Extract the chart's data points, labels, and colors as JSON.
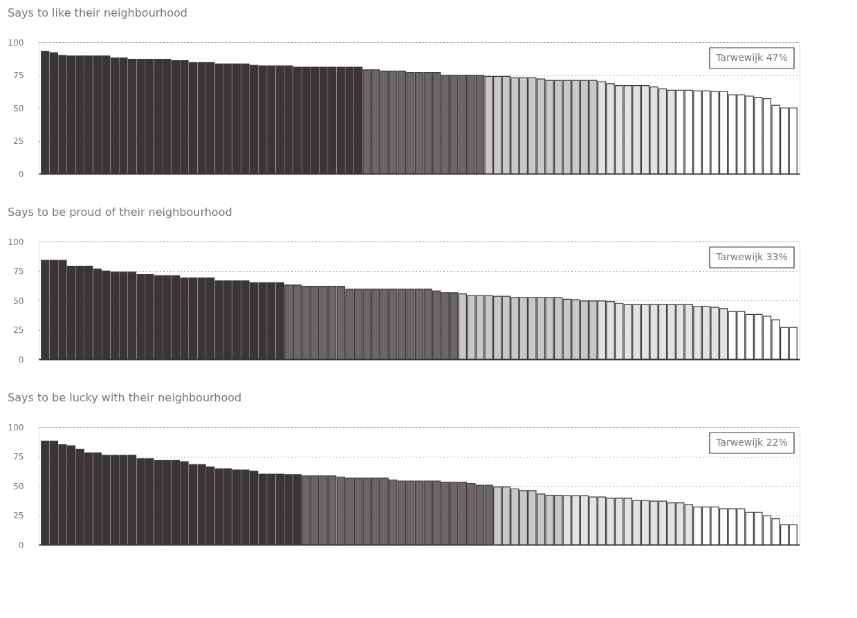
{
  "chart_data": [
    {
      "type": "bar",
      "title": "Says to like their neighbourhood",
      "ylim": [
        0,
        100
      ],
      "yticks": [
        0,
        25,
        50,
        75,
        100
      ],
      "grid": "y",
      "tick_labels": "y",
      "categories": [
        null,
        null,
        null,
        null,
        null,
        null,
        null,
        null,
        null,
        null,
        null,
        null,
        null,
        null,
        null,
        null,
        null,
        null,
        null,
        null,
        null,
        null,
        null,
        null,
        null,
        null,
        null,
        null,
        null,
        null,
        null,
        null,
        null,
        null,
        null,
        null,
        null,
        null,
        null,
        null,
        null,
        null,
        null,
        null,
        null,
        null,
        null,
        null,
        null,
        null,
        null,
        null,
        null,
        null,
        null,
        null,
        null,
        null,
        null,
        null,
        null,
        null,
        null,
        null,
        null,
        null,
        null,
        null,
        null,
        null,
        null,
        null,
        null,
        null,
        null,
        null,
        null,
        null,
        null,
        null,
        null,
        null,
        null,
        null,
        null,
        null,
        null
      ],
      "values": [
        93,
        92,
        90,
        89.5,
        89.5,
        89.5,
        89.5,
        89.5,
        88,
        88,
        87,
        87,
        87,
        87,
        87,
        86,
        86,
        84.5,
        84.5,
        84.5,
        83.5,
        83.5,
        83.5,
        83.5,
        82.5,
        82,
        82,
        82,
        82,
        81,
        81,
        81,
        81,
        81,
        81,
        81,
        81,
        79,
        79,
        78,
        78,
        78,
        77,
        77,
        77,
        77,
        75,
        75,
        75,
        75,
        75,
        74,
        74,
        74,
        73,
        73,
        73,
        72,
        71,
        71,
        71,
        71,
        71,
        71,
        70,
        68.5,
        67,
        67,
        67,
        67,
        66,
        64.5,
        63.5,
        63.5,
        63.5,
        63,
        63,
        62.5,
        62.5,
        60,
        60,
        59,
        58,
        57,
        52,
        50,
        50
      ],
      "colors": [
        "#3a3536",
        "#3a3536",
        "#3a3536",
        "#3a3536",
        "#3a3536",
        "#3a3536",
        "#3a3536",
        "#3a3536",
        "#3a3536",
        "#3a3536",
        "#3a3536",
        "#3a3536",
        "#3a3536",
        "#3a3536",
        "#3a3536",
        "#3a3536",
        "#3a3536",
        "#3a3536",
        "#3a3536",
        "#3a3536",
        "#3a3536",
        "#3a3536",
        "#3a3536",
        "#3a3536",
        "#3a3536",
        "#3a3536",
        "#3a3536",
        "#3a3536",
        "#3a3536",
        "#3a3536",
        "#3a3536",
        "#3a3536",
        "#3a3536",
        "#3a3536",
        "#3a3536",
        "#3a3536",
        "#3a3536",
        "#6b6768",
        "#6b6768",
        "#6b6768",
        "#6b6768",
        "#6b6768",
        "#6b6768",
        "#6b6768",
        "#6b6768",
        "#6b6768",
        "#6b6768",
        "#6b6768",
        "#6b6768",
        "#6b6768",
        "#6b6768",
        "#c9c7c7",
        "#c9c7c7",
        "#c9c7c7",
        "#c9c7c7",
        "#c9c7c7",
        "#c9c7c7",
        "#c9c7c7",
        "#c9c7c7",
        "#c9c7c7",
        "#c9c7c7",
        "#c9c7c7",
        "#c9c7c7",
        "#c9c7c7",
        "#e4e3e3",
        "#e4e3e3",
        "#e4e3e3",
        "#e4e3e3",
        "#e4e3e3",
        "#e4e3e3",
        "#e4e3e3",
        "#e4e3e3",
        "#e4e3e3",
        "#ffffff",
        "#ffffff",
        "#ffffff",
        "#ffffff",
        "#ffffff",
        "#ffffff",
        "#ffffff",
        "#ffffff",
        "#ffffff",
        "#ffffff",
        "#ffffff",
        "#ffffff",
        "#ffffff",
        "#ffffff"
      ],
      "annotations": [
        "Tarwewijk 47%"
      ]
    },
    {
      "type": "bar",
      "title": "Says to be proud of their neighbourhood",
      "ylim": [
        0,
        100
      ],
      "yticks": [
        0,
        25,
        50,
        75,
        100
      ],
      "grid": "y",
      "tick_labels": "y",
      "categories": [
        null,
        null,
        null,
        null,
        null,
        null,
        null,
        null,
        null,
        null,
        null,
        null,
        null,
        null,
        null,
        null,
        null,
        null,
        null,
        null,
        null,
        null,
        null,
        null,
        null,
        null,
        null,
        null,
        null,
        null,
        null,
        null,
        null,
        null,
        null,
        null,
        null,
        null,
        null,
        null,
        null,
        null,
        null,
        null,
        null,
        null,
        null,
        null,
        null,
        null,
        null,
        null,
        null,
        null,
        null,
        null,
        null,
        null,
        null,
        null,
        null,
        null,
        null,
        null,
        null,
        null,
        null,
        null,
        null,
        null,
        null,
        null,
        null,
        null,
        null,
        null,
        null,
        null,
        null,
        null,
        null,
        null,
        null,
        null,
        null,
        null,
        null
      ],
      "values": [
        84,
        84,
        84,
        79,
        79,
        79,
        76.5,
        75,
        74,
        74,
        74,
        72,
        72,
        71,
        71,
        71,
        69,
        69,
        69,
        69,
        66.5,
        66.5,
        66.5,
        66.5,
        65,
        65,
        65,
        65,
        63,
        63,
        62,
        62,
        62,
        62,
        62,
        59.5,
        59.5,
        59.5,
        59.5,
        59.5,
        59.5,
        59.5,
        59.5,
        59.5,
        59.5,
        58,
        56.5,
        56.5,
        55.5,
        54,
        54,
        54,
        53.5,
        53.5,
        52.5,
        52.5,
        52.5,
        52.5,
        52.5,
        52.5,
        51,
        50.5,
        49.5,
        49.5,
        49.5,
        49,
        47.5,
        46.5,
        46.5,
        46.5,
        46.5,
        46.5,
        46.5,
        46.5,
        46.5,
        45,
        45,
        44,
        43,
        40.5,
        40.5,
        38,
        38,
        36.5,
        33.5,
        27,
        27
      ],
      "colors": [
        "#3a3536",
        "#3a3536",
        "#3a3536",
        "#3a3536",
        "#3a3536",
        "#3a3536",
        "#3a3536",
        "#3a3536",
        "#3a3536",
        "#3a3536",
        "#3a3536",
        "#3a3536",
        "#3a3536",
        "#3a3536",
        "#3a3536",
        "#3a3536",
        "#3a3536",
        "#3a3536",
        "#3a3536",
        "#3a3536",
        "#3a3536",
        "#3a3536",
        "#3a3536",
        "#3a3536",
        "#3a3536",
        "#3a3536",
        "#3a3536",
        "#3a3536",
        "#6b6768",
        "#6b6768",
        "#6b6768",
        "#6b6768",
        "#6b6768",
        "#6b6768",
        "#6b6768",
        "#6b6768",
        "#6b6768",
        "#6b6768",
        "#6b6768",
        "#6b6768",
        "#6b6768",
        "#6b6768",
        "#6b6768",
        "#6b6768",
        "#6b6768",
        "#6b6768",
        "#6b6768",
        "#6b6768",
        "#c9c7c7",
        "#c9c7c7",
        "#c9c7c7",
        "#c9c7c7",
        "#c9c7c7",
        "#c9c7c7",
        "#c9c7c7",
        "#c9c7c7",
        "#c9c7c7",
        "#c9c7c7",
        "#c9c7c7",
        "#c9c7c7",
        "#c9c7c7",
        "#c9c7c7",
        "#c9c7c7",
        "#c9c7c7",
        "#e4e3e3",
        "#e4e3e3",
        "#e4e3e3",
        "#e4e3e3",
        "#e4e3e3",
        "#e4e3e3",
        "#e4e3e3",
        "#e4e3e3",
        "#e4e3e3",
        "#e4e3e3",
        "#e4e3e3",
        "#e4e3e3",
        "#e4e3e3",
        "#e4e3e3",
        "#e4e3e3",
        "#ffffff",
        "#ffffff",
        "#ffffff",
        "#ffffff",
        "#ffffff",
        "#ffffff",
        "#ffffff",
        "#ffffff"
      ],
      "annotations": [
        "Tarwewijk 33%"
      ]
    },
    {
      "type": "bar",
      "title": "Says to be lucky with their neighbourhood",
      "ylim": [
        0,
        100
      ],
      "yticks": [
        0,
        25,
        50,
        75,
        100
      ],
      "grid": "y",
      "tick_labels": "y",
      "categories": [
        null,
        null,
        null,
        null,
        null,
        null,
        null,
        null,
        null,
        null,
        null,
        null,
        null,
        null,
        null,
        null,
        null,
        null,
        null,
        null,
        null,
        null,
        null,
        null,
        null,
        null,
        null,
        null,
        null,
        null,
        null,
        null,
        null,
        null,
        null,
        null,
        null,
        null,
        null,
        null,
        null,
        null,
        null,
        null,
        null,
        null,
        null,
        null,
        null,
        null,
        null,
        null,
        null,
        null,
        null,
        null,
        null,
        null,
        null,
        null,
        null,
        null,
        null,
        null,
        null,
        null,
        null,
        null,
        null,
        null,
        null,
        null,
        null,
        null,
        null,
        null,
        null,
        null,
        null,
        null,
        null,
        null,
        null,
        null,
        null,
        null,
        null
      ],
      "values": [
        88,
        88,
        85,
        84,
        81,
        78,
        78,
        76,
        76,
        76,
        76,
        73,
        73,
        71.5,
        71.5,
        71.5,
        70.5,
        68,
        68,
        66,
        64.5,
        64.5,
        63.5,
        63.5,
        62.5,
        60,
        60,
        60,
        59.5,
        59.5,
        58.5,
        58.5,
        58.5,
        58.5,
        57.5,
        56.5,
        56.5,
        56.5,
        56.5,
        56.5,
        55,
        54,
        54,
        54,
        54,
        54,
        53,
        53,
        53,
        52,
        50.5,
        50.5,
        49,
        49,
        47.5,
        46,
        46,
        43,
        42,
        42,
        41.5,
        41.5,
        41.5,
        40.5,
        40.5,
        39.5,
        39.5,
        39.5,
        37.5,
        37.5,
        37,
        37,
        35.5,
        35.5,
        34,
        32,
        32,
        32,
        30.5,
        30.5,
        30.5,
        27.5,
        27.5,
        24.5,
        22,
        17,
        17
      ],
      "colors": [
        "#3a3536",
        "#3a3536",
        "#3a3536",
        "#3a3536",
        "#3a3536",
        "#3a3536",
        "#3a3536",
        "#3a3536",
        "#3a3536",
        "#3a3536",
        "#3a3536",
        "#3a3536",
        "#3a3536",
        "#3a3536",
        "#3a3536",
        "#3a3536",
        "#3a3536",
        "#3a3536",
        "#3a3536",
        "#3a3536",
        "#3a3536",
        "#3a3536",
        "#3a3536",
        "#3a3536",
        "#3a3536",
        "#3a3536",
        "#3a3536",
        "#3a3536",
        "#3a3536",
        "#3a3536",
        "#6b6768",
        "#6b6768",
        "#6b6768",
        "#6b6768",
        "#6b6768",
        "#6b6768",
        "#6b6768",
        "#6b6768",
        "#6b6768",
        "#6b6768",
        "#6b6768",
        "#6b6768",
        "#6b6768",
        "#6b6768",
        "#6b6768",
        "#6b6768",
        "#6b6768",
        "#6b6768",
        "#6b6768",
        "#6b6768",
        "#6b6768",
        "#6b6768",
        "#c9c7c7",
        "#c9c7c7",
        "#c9c7c7",
        "#c9c7c7",
        "#c9c7c7",
        "#c9c7c7",
        "#c9c7c7",
        "#c9c7c7",
        "#e4e3e3",
        "#e4e3e3",
        "#e4e3e3",
        "#e4e3e3",
        "#e4e3e3",
        "#e4e3e3",
        "#e4e3e3",
        "#e4e3e3",
        "#e4e3e3",
        "#e4e3e3",
        "#e4e3e3",
        "#e4e3e3",
        "#e4e3e3",
        "#e4e3e3",
        "#e4e3e3",
        "#ffffff",
        "#ffffff",
        "#ffffff",
        "#ffffff",
        "#ffffff",
        "#ffffff",
        "#ffffff",
        "#ffffff",
        "#ffffff",
        "#ffffff",
        "#ffffff",
        "#ffffff"
      ],
      "annotations": [
        "Tarwewijk 22%"
      ]
    }
  ]
}
